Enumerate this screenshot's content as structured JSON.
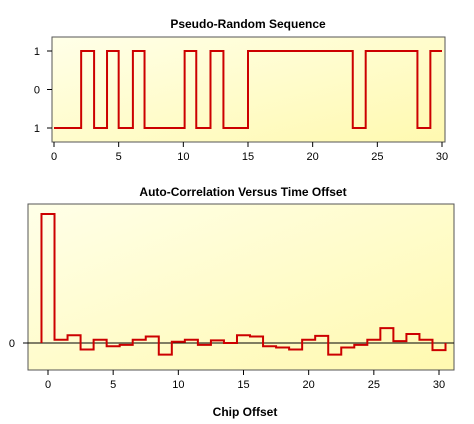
{
  "chart_data": [
    {
      "type": "line",
      "title": "Pseudo-Random Sequence",
      "xlabel": "",
      "ylabel": "",
      "xlim": [
        0,
        30
      ],
      "ylim": [
        -1,
        1
      ],
      "xticks": [
        0,
        5,
        10,
        15,
        20,
        25,
        30
      ],
      "ytick_labels": [
        "1",
        "0",
        "1"
      ],
      "step_x": [
        0,
        2.1,
        3.1,
        4.1,
        5.0,
        6.1,
        7.0,
        10.1,
        11.0,
        12.1,
        13.1,
        15.0,
        18.1,
        23.1,
        24.1,
        28.1,
        29.1,
        30
      ],
      "step_y": [
        -1,
        1,
        -1,
        1,
        -1,
        1,
        -1,
        1,
        -1,
        1,
        -1,
        1,
        1,
        -1,
        1,
        -1,
        1,
        1
      ],
      "grid": false,
      "colors": {
        "line": "#cc0000",
        "bg_start": "#ffffff",
        "bg_end": "#ffff99"
      }
    },
    {
      "type": "line",
      "title": "Auto-Correlation Versus Time Offset",
      "xlabel": "Chip Offset",
      "ylabel": "",
      "xlim": [
        -0.5,
        30.5
      ],
      "ylim": [
        -4,
        20
      ],
      "xticks": [
        0,
        5,
        10,
        15,
        20,
        25,
        30
      ],
      "ytick_labels": [
        "0"
      ],
      "x": [
        -0.5,
        0.5,
        1.5,
        2.5,
        3.5,
        4.5,
        5.5,
        6.5,
        7.5,
        8.5,
        9.5,
        10.5,
        11.5,
        12.5,
        13.5,
        14.5,
        15.5,
        16.5,
        17.5,
        18.5,
        19.5,
        20.5,
        21.5,
        22.5,
        23.5,
        24.5,
        25.5,
        26.5,
        27.5,
        28.5,
        29.5
      ],
      "values": [
        20,
        0.5,
        1.2,
        -1,
        0.5,
        -0.5,
        -0.3,
        0.5,
        1,
        -1.8,
        0.2,
        0.5,
        -0.3,
        0.4,
        0,
        1.2,
        1,
        -0.5,
        -0.7,
        -1,
        0.5,
        1.1,
        -1.8,
        -0.7,
        -0.3,
        0.5,
        2.3,
        0.3,
        1.4,
        0.5,
        -1.1
      ],
      "grid": false,
      "colors": {
        "line": "#cc0000",
        "bg_start": "#ffffff",
        "bg_end": "#ffff99"
      }
    }
  ]
}
